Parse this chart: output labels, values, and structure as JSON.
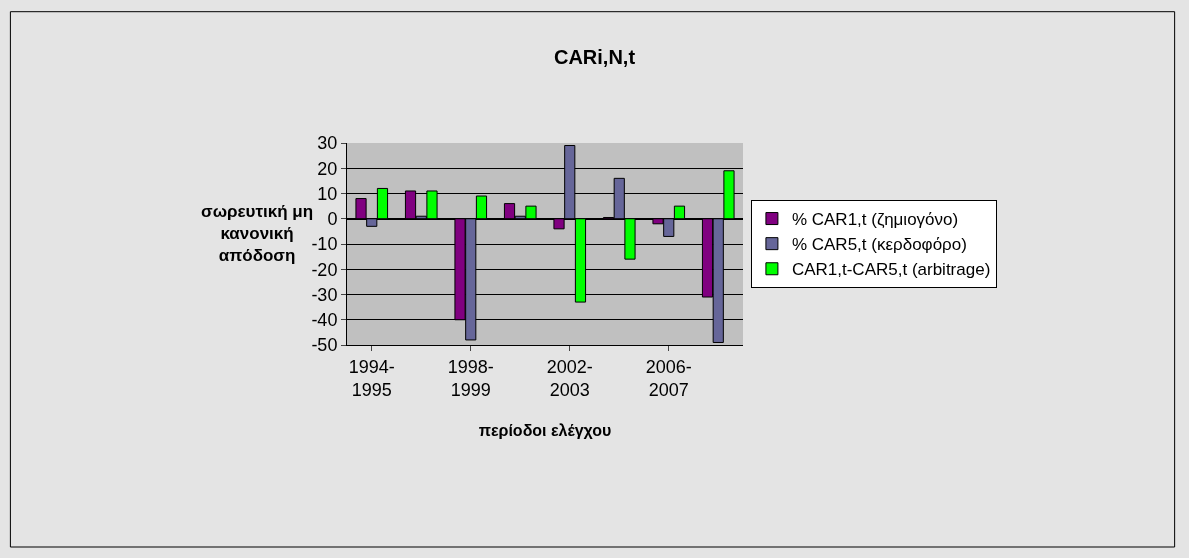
{
  "chart_data": {
    "type": "bar",
    "title": "CARi,N,t",
    "xlabel": "περίοδοι ελέγχου",
    "ylabel": "σωρευτική μη\nκανονική\nαπόδοση",
    "categories": [
      "1994-\n1995",
      null,
      "1998-\n1999",
      null,
      "2002-\n2003",
      null,
      "2006-\n2007",
      null
    ],
    "series": [
      {
        "name": "% CAR1,t (ζημιογόνο)",
        "color": "#800080",
        "values": [
          8,
          11,
          -40,
          6,
          -4,
          0.5,
          -2,
          -31
        ]
      },
      {
        "name": "% CAR5,t (κερδοφόρο)",
        "color": "#666699",
        "values": [
          -3,
          1,
          -48,
          1,
          29,
          16,
          -7,
          -49
        ]
      },
      {
        "name": "CAR1,t-CAR5,t (arbitrage)",
        "color": "#00ff00",
        "values": [
          12,
          11,
          9,
          5,
          -33,
          -16,
          5,
          19
        ]
      }
    ],
    "ylim": [
      -50,
      30
    ],
    "yticks": [
      -50,
      -40,
      -30,
      -20,
      -10,
      0,
      10,
      20,
      30
    ],
    "grid": "y",
    "legend": "right"
  }
}
